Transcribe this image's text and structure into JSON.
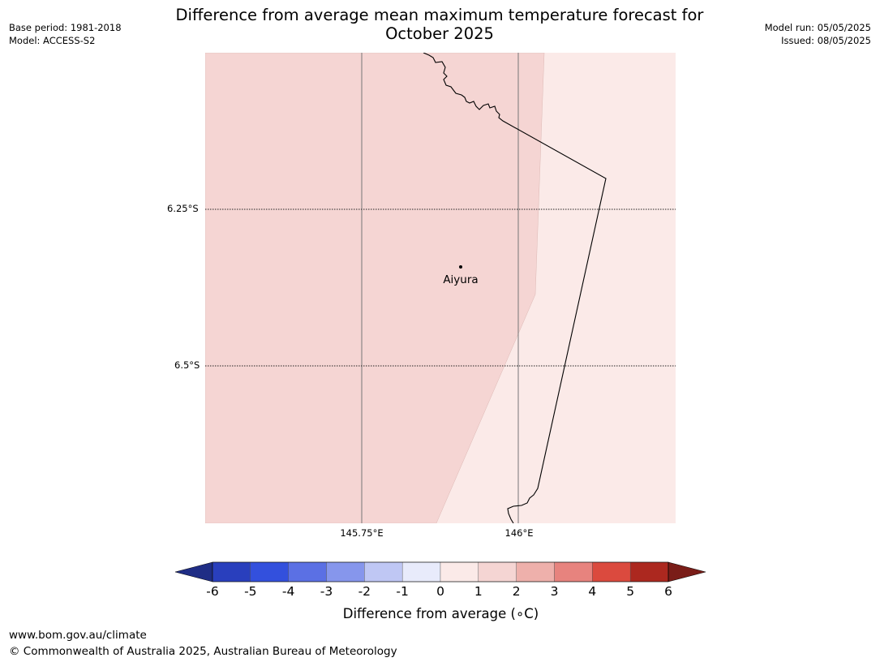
{
  "header": {
    "title_line1": "Difference from average mean maximum temperature forecast for",
    "title_line2": "October 2025",
    "base_period": "Base period: 1981-2018",
    "model": "Model: ACCESS-S2",
    "model_run": "Model run: 05/05/2025",
    "issued": "Issued: 08/05/2025"
  },
  "map": {
    "lat_labels": [
      "6.25°S",
      "6.5°S"
    ],
    "lon_labels": [
      "145.75°E",
      "146°E"
    ],
    "place_label": "Aiyura",
    "region_colors": {
      "band_1_2": "#f5d5d3",
      "band_0_1": "#fbeae8"
    }
  },
  "colorbar": {
    "label": "Difference from average (∘C)",
    "ticks": [
      "-6",
      "-5",
      "-4",
      "-3",
      "-2",
      "-1",
      "0",
      "1",
      "2",
      "3",
      "4",
      "5",
      "6"
    ],
    "colors": [
      "#1f2d85",
      "#293fbd",
      "#3350dd",
      "#5b70e4",
      "#8696ec",
      "#bfc7f4",
      "#e8ebfb",
      "#fbeae8",
      "#f5d5d3",
      "#eeb0ab",
      "#e7837e",
      "#db4a3e",
      "#ac281f",
      "#7a1d18"
    ]
  },
  "footer": {
    "url": "www.bom.gov.au/climate",
    "copyright": "© Commonwealth of Australia 2025, Australian Bureau of Meteorology"
  }
}
